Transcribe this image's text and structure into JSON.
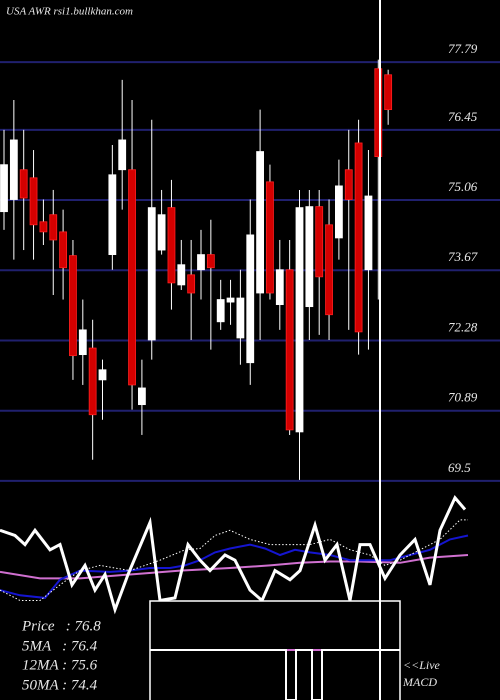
{
  "chart_data": [
    {
      "type": "candlestick",
      "title": "USA AWR rsi1.bullkhan.com",
      "open": [
        74.83,
        75.07,
        75.66,
        75.5,
        74.63,
        74.77,
        74.43,
        73.96,
        72.0,
        72.13,
        71.5,
        73.98,
        75.66,
        75.66,
        71.01,
        72.29,
        74.07,
        74.91,
        73.38,
        73.58,
        73.68,
        73.98,
        72.65,
        73.04,
        72.33,
        71.84,
        73.22,
        75.42,
        72.99,
        73.68,
        70.47,
        72.95,
        74.93,
        74.57,
        74.31,
        75.66,
        76.19,
        73.68,
        77.66,
        77.54
      ],
      "high": [
        76.45,
        77.04,
        76.45,
        76.05,
        75.07,
        75.26,
        74.87,
        74.27,
        73.09,
        72.69,
        71.9,
        76.15,
        77.44,
        77.04,
        71.9,
        76.65,
        75.26,
        75.46,
        74.27,
        74.27,
        74.47,
        74.67,
        73.48,
        73.48,
        73.68,
        75.07,
        76.85,
        75.76,
        74.27,
        74.27,
        75.26,
        75.26,
        75.26,
        75.07,
        75.86,
        76.45,
        76.65,
        76.05,
        77.84,
        77.64
      ],
      "low": [
        74.47,
        73.88,
        74.07,
        73.88,
        74.17,
        73.18,
        73.09,
        71.5,
        71.4,
        69.92,
        70.71,
        73.68,
        74.87,
        70.91,
        70.41,
        71.9,
        73.98,
        72.89,
        73.28,
        72.29,
        73.09,
        72.1,
        72.49,
        72.59,
        71.8,
        71.4,
        72.29,
        73.09,
        72.49,
        70.41,
        69.52,
        72.29,
        72.39,
        72.29,
        73.88,
        72.49,
        72.0,
        72.1,
        73.09,
        76.55
      ],
      "close": [
        75.76,
        76.25,
        75.1,
        74.57,
        74.43,
        74.27,
        73.72,
        71.98,
        72.49,
        70.81,
        71.7,
        75.56,
        76.25,
        71.4,
        71.34,
        74.91,
        74.77,
        73.42,
        73.78,
        73.22,
        73.98,
        73.72,
        73.09,
        73.12,
        73.12,
        74.37,
        76.02,
        73.22,
        73.68,
        70.51,
        74.91,
        74.93,
        73.54,
        72.79,
        75.34,
        75.07,
        72.45,
        75.14,
        75.92,
        76.85
      ],
      "up_color": "#ffffff",
      "down_color": "#d40000",
      "ylim": [
        69.32,
        79.02
      ],
      "yticks": [
        77.79,
        76.45,
        75.06,
        73.67,
        72.28,
        70.89,
        69.5
      ],
      "grid": true,
      "grid_color": "#20206e",
      "notes": [
        "Price   : 76.8",
        "5MA   : 76.4",
        "12MA : 75.6",
        "50MA : 74.4"
      ]
    },
    {
      "type": "line",
      "xlim": [
        0,
        50
      ],
      "ylim": [
        0,
        100
      ],
      "series": [
        {
          "color": "#ffffff",
          "dashed": false,
          "width": 3,
          "x": [
            0,
            1.5,
            2.5,
            3.5,
            5,
            6,
            7.2,
            8.5,
            9.5,
            10.5,
            11.5,
            12.8,
            15,
            16,
            17.5,
            18.8,
            20,
            21,
            22.5,
            23.5,
            25,
            26.2,
            27.5,
            29,
            30,
            31.5,
            32.5,
            33.7,
            35,
            36,
            37,
            38.5,
            40,
            41.5,
            43,
            44,
            45.5,
            46.5
          ],
          "values": [
            69,
            65,
            58,
            69,
            54,
            58,
            27,
            42,
            23,
            35,
            8,
            35,
            75,
            15,
            17,
            58,
            46,
            38,
            50,
            46,
            23,
            15,
            38,
            31,
            38,
            73,
            46,
            58,
            15,
            58,
            58,
            32,
            50,
            62,
            27,
            69,
            94,
            85
          ]
        },
        {
          "color": "#ffffff",
          "dashed": true,
          "width": 1,
          "x": [
            0,
            2,
            4,
            6,
            8,
            10,
            13,
            16,
            18.5,
            20,
            21.5,
            23,
            25,
            27,
            29,
            31,
            33,
            35,
            37,
            38.5,
            40,
            42,
            44,
            46,
            46.8
          ],
          "values": [
            23,
            15,
            15,
            27,
            38,
            42,
            38,
            46,
            54,
            55,
            65,
            69,
            62,
            58,
            58,
            58,
            62,
            54,
            50,
            42,
            46,
            54,
            62,
            77,
            77
          ]
        },
        {
          "color": "#1515d0",
          "dashed": false,
          "width": 2,
          "x": [
            0,
            2,
            4.5,
            6,
            8,
            11,
            13,
            15,
            17,
            18.5,
            20,
            21.5,
            23,
            25,
            26.5,
            28,
            29.5,
            31,
            33,
            35,
            37,
            39,
            41,
            43,
            45,
            46.8
          ],
          "values": [
            23,
            19,
            17,
            31,
            38,
            37,
            38,
            40,
            40,
            42,
            46,
            52,
            55,
            58,
            55,
            50,
            54,
            52,
            50,
            46,
            46,
            46,
            50,
            54,
            62,
            65
          ]
        },
        {
          "color": "#d070d0",
          "dashed": false,
          "width": 2,
          "x": [
            0,
            4,
            8,
            13,
            18,
            23,
            27,
            30,
            33,
            36,
            40,
            43,
            46.8
          ],
          "values": [
            37,
            32,
            32,
            35,
            38,
            40,
            42,
            44,
            45,
            45,
            44,
            48,
            50
          ]
        }
      ],
      "annotation": [
        "<<Live",
        "MACD"
      ]
    }
  ]
}
